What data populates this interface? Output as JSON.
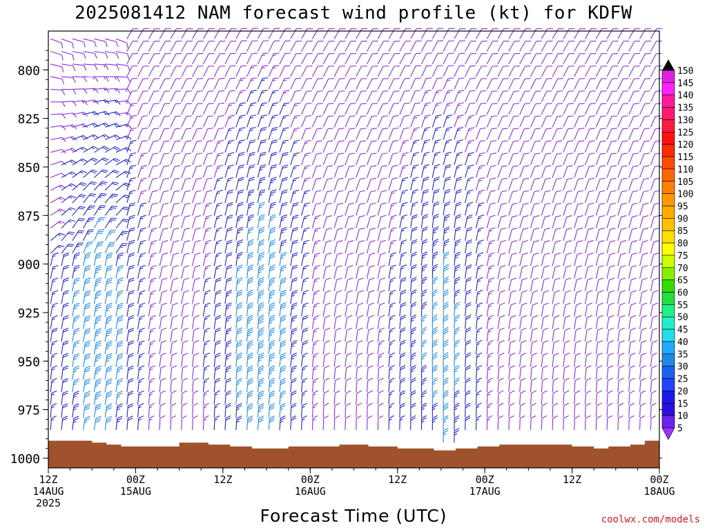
{
  "title": "2025081412 NAM forecast wind profile (kt) for KDFW",
  "credit": "coolwx.com/models",
  "colors": {
    "terrain": "#a0522d",
    "light_wind": "#8a2be2",
    "moderate_wind": "#2020cc",
    "strong_wind": "#1e88e5"
  },
  "chart_data": {
    "type": "wind-barb time-height",
    "xlabel": "Forecast Time (UTC)",
    "ylabel": "",
    "xlim_hours": [
      0,
      84
    ],
    "ylim_mb": [
      1005,
      780
    ],
    "y_ticks": [
      "800",
      "825",
      "850",
      "875",
      "900",
      "925",
      "950",
      "975",
      "1000"
    ],
    "y_tick_values": [
      800,
      825,
      850,
      875,
      900,
      925,
      950,
      975,
      1000
    ],
    "x_ticks": [
      {
        "hour": 0,
        "l1": "12Z",
        "l2": "14AUG",
        "l3": "2025"
      },
      {
        "hour": 12,
        "l1": "00Z",
        "l2": "15AUG",
        "l3": ""
      },
      {
        "hour": 24,
        "l1": "12Z",
        "l2": "",
        "l3": ""
      },
      {
        "hour": 36,
        "l1": "00Z",
        "l2": "16AUG",
        "l3": ""
      },
      {
        "hour": 48,
        "l1": "12Z",
        "l2": "",
        "l3": ""
      },
      {
        "hour": 60,
        "l1": "00Z",
        "l2": "17AUG",
        "l3": ""
      },
      {
        "hour": 72,
        "l1": "12Z",
        "l2": "",
        "l3": ""
      },
      {
        "hour": 84,
        "l1": "00Z",
        "l2": "18AUG",
        "l3": ""
      }
    ],
    "colorbar": {
      "labels": [
        "150",
        "145",
        "140",
        "135",
        "130",
        "125",
        "120",
        "115",
        "110",
        "105",
        "100",
        "95",
        "90",
        "85",
        "80",
        "75",
        "70",
        "65",
        "60",
        "55",
        "50",
        "45",
        "40",
        "35",
        "30",
        "25",
        "20",
        "15",
        "10",
        "5"
      ],
      "colors": [
        "#e020e0",
        "#ff22ff",
        "#ff1aa0",
        "#ff1a70",
        "#ff1a40",
        "#ff1111",
        "#ff2a00",
        "#ff4a00",
        "#ff6600",
        "#ff8000",
        "#ff9900",
        "#ffaa00",
        "#ffc000",
        "#ffdd00",
        "#ffff00",
        "#ccff00",
        "#88ee00",
        "#33dd00",
        "#22dd44",
        "#22ee88",
        "#22eecc",
        "#22ddee",
        "#22aaff",
        "#1e88e5",
        "#1e60ee",
        "#2244ff",
        "#1a1aee",
        "#2a10dd",
        "#6a22ee",
        "#9933ff"
      ]
    },
    "surface_pressure_mb": [
      {
        "h": 0,
        "p": 991
      },
      {
        "h": 4,
        "p": 991
      },
      {
        "h": 6,
        "p": 992
      },
      {
        "h": 8,
        "p": 993
      },
      {
        "h": 10,
        "p": 994
      },
      {
        "h": 14,
        "p": 994
      },
      {
        "h": 18,
        "p": 992
      },
      {
        "h": 22,
        "p": 993
      },
      {
        "h": 25,
        "p": 994
      },
      {
        "h": 28,
        "p": 995
      },
      {
        "h": 33,
        "p": 994
      },
      {
        "h": 36,
        "p": 994
      },
      {
        "h": 40,
        "p": 993
      },
      {
        "h": 44,
        "p": 994
      },
      {
        "h": 48,
        "p": 995
      },
      {
        "h": 51,
        "p": 995
      },
      {
        "h": 53,
        "p": 996
      },
      {
        "h": 56,
        "p": 995
      },
      {
        "h": 59,
        "p": 994
      },
      {
        "h": 62,
        "p": 993
      },
      {
        "h": 65,
        "p": 993
      },
      {
        "h": 68,
        "p": 993
      },
      {
        "h": 72,
        "p": 994
      },
      {
        "h": 75,
        "p": 995
      },
      {
        "h": 77,
        "p": 994
      },
      {
        "h": 80,
        "p": 993
      },
      {
        "h": 82,
        "p": 991
      },
      {
        "h": 84,
        "p": 991
      }
    ],
    "barb_grid": {
      "hours_step": 1.5,
      "pressure_step_mb": 6.5,
      "p_top_mb": 784
    },
    "jets": [
      {
        "peak_hour": 6,
        "peak_p_mb": 940,
        "peak_kt": 32,
        "dir_deg": 190
      },
      {
        "peak_hour": 28.5,
        "peak_p_mb": 940,
        "peak_kt": 34,
        "dir_deg": 185
      },
      {
        "peak_hour": 53,
        "peak_p_mb": 945,
        "peak_kt": 28,
        "dir_deg": 180
      }
    ],
    "background_wind": {
      "speed_kt": 10,
      "dir_low_deg": 180,
      "dir_high_deg": 210
    }
  }
}
